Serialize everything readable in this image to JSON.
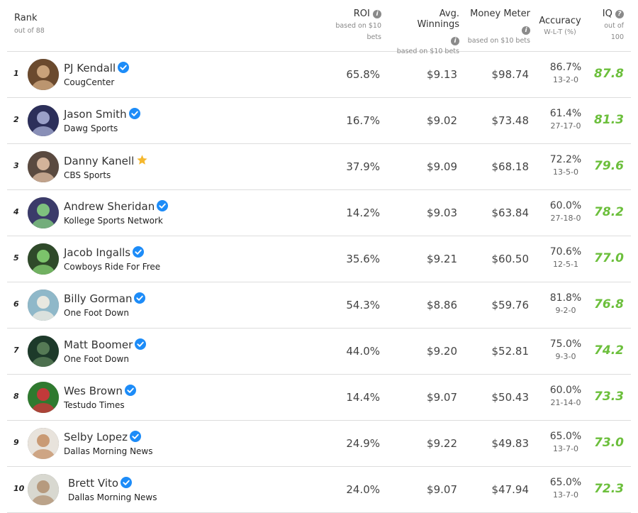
{
  "header": {
    "rank": {
      "title": "Rank",
      "sub": "out of 88"
    },
    "roi": {
      "title": "ROI",
      "sub1": "based on $10",
      "sub2": "bets"
    },
    "avg": {
      "title": "Avg. Winnings",
      "sub": "based on $10 bets"
    },
    "money": {
      "title": "Money Meter",
      "sub": "based on $10 bets"
    },
    "accuracy": {
      "title": "Accuracy",
      "sub": "W-L-T (%)"
    },
    "iq": {
      "title": "IQ",
      "sub1": "out of",
      "sub2": "100"
    }
  },
  "colors": {
    "iq_green": "#6cbf3c",
    "verified_blue": "#1d8cf8",
    "star_gold": "#f5b82e"
  },
  "rows": [
    {
      "rank": "1",
      "name": "PJ Kendall",
      "badge": "verified-icon",
      "site": "CougCenter",
      "roi": "65.8%",
      "avg": "$9.13",
      "money": "$98.74",
      "acc": "86.7%",
      "wlt": "13-2-0",
      "iq": "87.8"
    },
    {
      "rank": "2",
      "name": "Jason Smith",
      "badge": "verified-icon",
      "site": "Dawg Sports",
      "roi": "16.7%",
      "avg": "$9.02",
      "money": "$73.48",
      "acc": "61.4%",
      "wlt": "27-17-0",
      "iq": "81.3"
    },
    {
      "rank": "3",
      "name": "Danny Kanell",
      "badge": "star-icon",
      "site": "CBS Sports",
      "roi": "37.9%",
      "avg": "$9.09",
      "money": "$68.18",
      "acc": "72.2%",
      "wlt": "13-5-0",
      "iq": "79.6"
    },
    {
      "rank": "4",
      "name": "Andrew Sheridan",
      "badge": "verified-icon",
      "site": "Kollege Sports Network",
      "roi": "14.2%",
      "avg": "$9.03",
      "money": "$63.84",
      "acc": "60.0%",
      "wlt": "27-18-0",
      "iq": "78.2"
    },
    {
      "rank": "5",
      "name": "Jacob Ingalls",
      "badge": "verified-icon",
      "site": "Cowboys Ride For Free",
      "roi": "35.6%",
      "avg": "$9.21",
      "money": "$60.50",
      "acc": "70.6%",
      "wlt": "12-5-1",
      "iq": "77.0"
    },
    {
      "rank": "6",
      "name": "Billy Gorman",
      "badge": "verified-icon",
      "site": "One Foot Down",
      "roi": "54.3%",
      "avg": "$8.86",
      "money": "$59.76",
      "acc": "81.8%",
      "wlt": "9-2-0",
      "iq": "76.8"
    },
    {
      "rank": "7",
      "name": "Matt Boomer",
      "badge": "verified-icon",
      "site": "One Foot Down",
      "roi": "44.0%",
      "avg": "$9.20",
      "money": "$52.81",
      "acc": "75.0%",
      "wlt": "9-3-0",
      "iq": "74.2"
    },
    {
      "rank": "8",
      "name": "Wes Brown",
      "badge": "verified-icon",
      "site": "Testudo Times",
      "roi": "14.4%",
      "avg": "$9.07",
      "money": "$50.43",
      "acc": "60.0%",
      "wlt": "21-14-0",
      "iq": "73.3"
    },
    {
      "rank": "9",
      "name": "Selby Lopez",
      "badge": "verified-icon",
      "site": "Dallas Morning News",
      "roi": "24.9%",
      "avg": "$9.22",
      "money": "$49.83",
      "acc": "65.0%",
      "wlt": "13-7-0",
      "iq": "73.0"
    },
    {
      "rank": "10",
      "name": "Brett Vito",
      "badge": "verified-icon",
      "site": "Dallas Morning News",
      "roi": "24.0%",
      "avg": "$9.07",
      "money": "$47.94",
      "acc": "65.0%",
      "wlt": "13-7-0",
      "iq": "72.3"
    }
  ]
}
